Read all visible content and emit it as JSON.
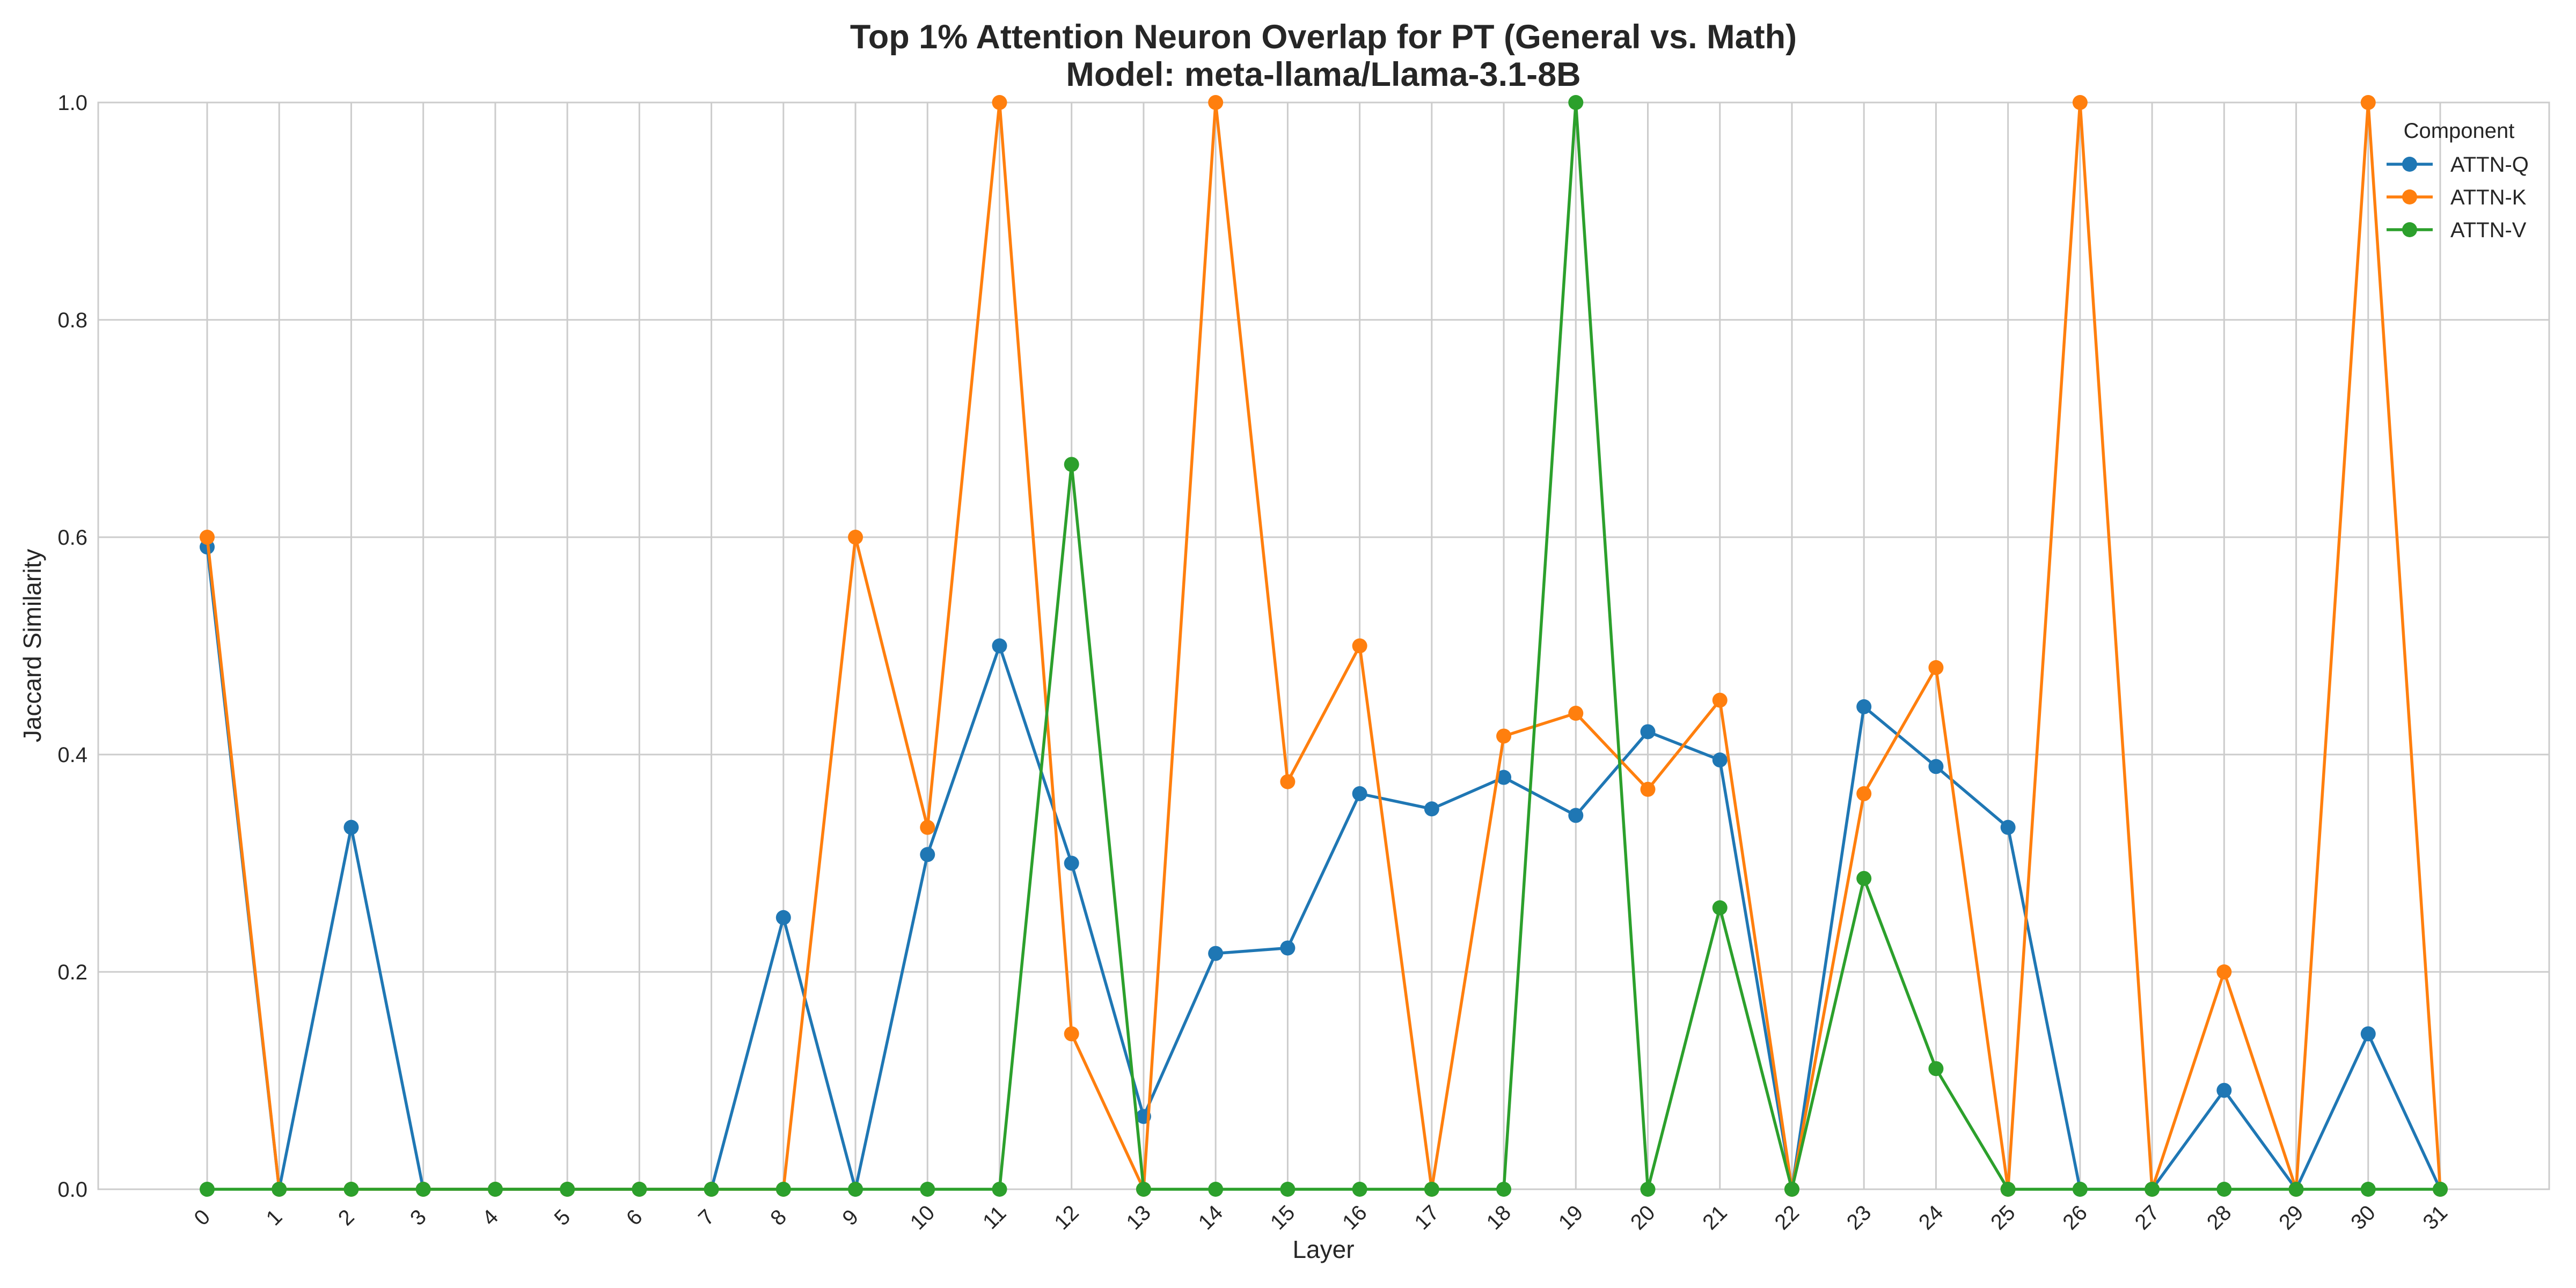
{
  "chart_data": {
    "type": "line",
    "title": "Top 1% Attention Neuron Overlap for PT (General vs. Math)",
    "subtitle": "Model: meta-llama/Llama-3.1-8B",
    "xlabel": "Layer",
    "ylabel": "Jaccard Similarity",
    "x": [
      0,
      1,
      2,
      3,
      4,
      5,
      6,
      7,
      8,
      9,
      10,
      11,
      12,
      13,
      14,
      15,
      16,
      17,
      18,
      19,
      20,
      21,
      22,
      23,
      24,
      25,
      26,
      27,
      28,
      29,
      30,
      31
    ],
    "xtick_labels": [
      "0",
      "1",
      "2",
      "3",
      "4",
      "5",
      "6",
      "7",
      "8",
      "9",
      "10",
      "11",
      "12",
      "13",
      "14",
      "15",
      "16",
      "17",
      "18",
      "19",
      "20",
      "21",
      "22",
      "23",
      "24",
      "25",
      "26",
      "27",
      "28",
      "29",
      "30",
      "31"
    ],
    "ylim": [
      0,
      1.0
    ],
    "yticks": [
      0.0,
      0.2,
      0.4,
      0.6,
      0.8,
      1.0
    ],
    "ytick_labels": [
      "0.0",
      "0.2",
      "0.4",
      "0.6",
      "0.8",
      "1.0"
    ],
    "grid": true,
    "legend": {
      "title": "Component",
      "position": "top-right"
    },
    "series": [
      {
        "name": "ATTN-Q",
        "color": "#1f77b4",
        "values": [
          0.591,
          0,
          0.333,
          0,
          0,
          0,
          0,
          0,
          0.25,
          0,
          0.308,
          0.5,
          0.3,
          0.067,
          0.217,
          0.222,
          0.364,
          0.35,
          0.379,
          0.344,
          0.421,
          0.395,
          0,
          0.444,
          0.389,
          0.333,
          0,
          0,
          0.091,
          0,
          0.143,
          0
        ]
      },
      {
        "name": "ATTN-K",
        "color": "#ff7f0e",
        "values": [
          0.6,
          0,
          0,
          0,
          0,
          0,
          0,
          0,
          0,
          0.6,
          0.333,
          1.0,
          0.143,
          0,
          1.0,
          0.375,
          0.5,
          0,
          0.417,
          0.438,
          0.368,
          0.45,
          0,
          0.364,
          0.48,
          0,
          1.0,
          0,
          0.2,
          0,
          1.0,
          0
        ]
      },
      {
        "name": "ATTN-V",
        "color": "#2ca02c",
        "values": [
          0,
          0,
          0,
          0,
          0,
          0,
          0,
          0,
          0,
          0,
          0,
          0,
          0.667,
          0,
          0,
          0,
          0,
          0,
          0,
          1.0,
          0,
          0.259,
          0,
          0.286,
          0.111,
          0,
          0,
          0,
          0,
          0,
          0,
          0
        ]
      }
    ]
  }
}
